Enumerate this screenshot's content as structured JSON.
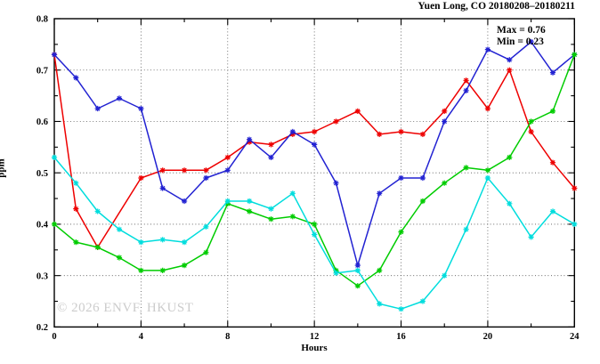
{
  "chart_data": {
    "type": "line",
    "title": "Yuen Long, CO 20180208–20180211",
    "xlabel": "Hours",
    "ylabel": "ppm",
    "xlim": [
      0,
      24
    ],
    "ylim": [
      0.2,
      0.8
    ],
    "x_major_ticks": [
      0,
      4,
      8,
      12,
      16,
      20,
      24
    ],
    "x_minor_ticks": [
      2,
      6,
      10,
      14,
      18,
      22
    ],
    "y_major_ticks": [
      0.2,
      0.3,
      0.4,
      0.5,
      0.6,
      0.7,
      0.8
    ],
    "y_minor_ticks": [
      0.25,
      0.35,
      0.45,
      0.55,
      0.65,
      0.75
    ],
    "grid": true,
    "legend": "none",
    "annotations": {
      "max_label": "Max = 0.76",
      "min_label": "Min = 0.23"
    },
    "watermark": "© 2026 ENVF, HKUST",
    "x": [
      0,
      1,
      2,
      3,
      4,
      5,
      6,
      7,
      8,
      9,
      10,
      11,
      12,
      13,
      14,
      15,
      16,
      17,
      18,
      19,
      20,
      21,
      22,
      23,
      24
    ],
    "series": [
      {
        "name": "red",
        "color": "#ee0000",
        "values": [
          0.73,
          0.43,
          0.355,
          null,
          0.49,
          0.505,
          0.505,
          0.505,
          0.53,
          0.56,
          0.555,
          0.575,
          0.58,
          0.6,
          0.62,
          0.575,
          0.58,
          0.575,
          0.62,
          0.68,
          0.625,
          0.7,
          0.58,
          0.52,
          0.47
        ]
      },
      {
        "name": "blue",
        "color": "#2222d2",
        "values": [
          0.73,
          0.685,
          0.625,
          0.645,
          0.625,
          0.47,
          0.445,
          0.49,
          0.505,
          0.565,
          0.53,
          0.58,
          0.555,
          0.48,
          0.32,
          0.46,
          0.49,
          0.49,
          0.6,
          0.66,
          0.74,
          0.72,
          0.755,
          0.695,
          0.73
        ]
      },
      {
        "name": "green",
        "color": "#00cc00",
        "values": [
          0.4,
          0.365,
          0.355,
          0.335,
          0.31,
          0.31,
          0.32,
          0.345,
          0.44,
          0.425,
          0.41,
          0.415,
          0.4,
          0.31,
          0.28,
          0.31,
          0.385,
          0.445,
          0.48,
          0.51,
          0.505,
          0.53,
          0.6,
          0.62,
          0.73
        ]
      },
      {
        "name": "cyan",
        "color": "#00dddd",
        "values": [
          0.53,
          0.48,
          0.425,
          0.39,
          0.365,
          0.37,
          0.365,
          0.395,
          0.445,
          0.445,
          0.43,
          0.46,
          0.38,
          0.305,
          0.31,
          0.245,
          0.235,
          0.25,
          0.3,
          0.39,
          0.49,
          0.44,
          0.375,
          0.425,
          0.4
        ]
      }
    ],
    "plot_box_color": "#000000",
    "grid_color": "#555555"
  }
}
